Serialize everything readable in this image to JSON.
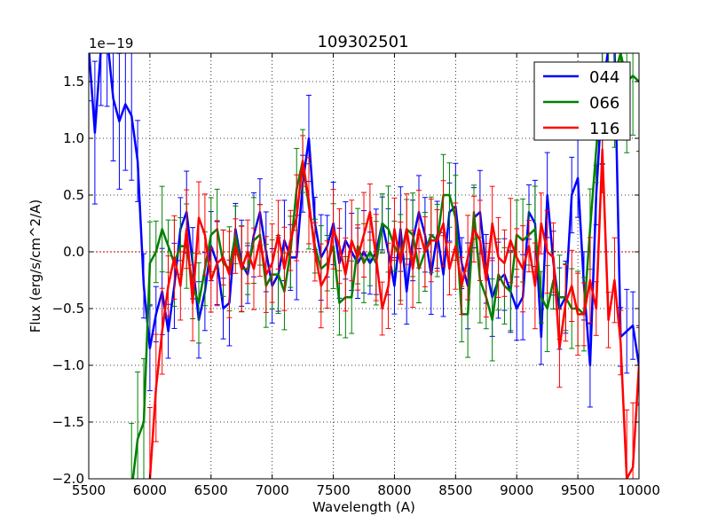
{
  "chart_data": {
    "type": "line",
    "title": "109302501",
    "xlabel": "Wavelength (A)",
    "ylabel": "Flux (erg/s/cm^2/A)",
    "offset_label": "1e−19",
    "xlim": [
      5500,
      10000
    ],
    "ylim": [
      -2.0,
      1.75
    ],
    "x_ticks": [
      5500,
      6000,
      6500,
      7000,
      7500,
      8000,
      8500,
      9000,
      9500,
      10000
    ],
    "x_tick_labels": [
      "5500",
      "6000",
      "6500",
      "7000",
      "7500",
      "8000",
      "8500",
      "9000",
      "9500",
      "10000"
    ],
    "y_ticks": [
      -2.0,
      -1.5,
      -1.0,
      -0.5,
      0.0,
      0.5,
      1.0,
      1.5
    ],
    "y_tick_labels": [
      "−2.0",
      "−1.5",
      "−1.0",
      "−0.5",
      "0.0",
      "0.5",
      "1.0",
      "1.5"
    ],
    "grid": true,
    "zero_line": true,
    "legend_position": "top-right",
    "series": [
      {
        "name": "044",
        "color": "#0000ff",
        "x": [
          5500,
          5550,
          5600,
          5650,
          5700,
          5750,
          5800,
          5850,
          5900,
          5950,
          6000,
          6050,
          6100,
          6150,
          6200,
          6250,
          6300,
          6350,
          6400,
          6450,
          6500,
          6550,
          6600,
          6650,
          6700,
          6750,
          6800,
          6850,
          6900,
          6950,
          7000,
          7050,
          7100,
          7150,
          7200,
          7250,
          7300,
          7350,
          7400,
          7450,
          7500,
          7550,
          7600,
          7650,
          7700,
          7750,
          7800,
          7850,
          7900,
          7950,
          8000,
          8050,
          8100,
          8150,
          8200,
          8250,
          8300,
          8350,
          8400,
          8450,
          8500,
          8550,
          8600,
          8650,
          8700,
          8750,
          8800,
          8850,
          8900,
          8950,
          9000,
          9050,
          9100,
          9150,
          9200,
          9250,
          9300,
          9350,
          9400,
          9450,
          9500,
          9550,
          9600,
          9650,
          9700,
          9750,
          9800,
          9850,
          9900,
          9950,
          10000
        ],
        "y": [
          1.8,
          1.05,
          1.8,
          1.9,
          1.35,
          1.15,
          1.3,
          1.2,
          0.8,
          -0.3,
          -0.85,
          -0.55,
          -0.35,
          -0.7,
          -0.3,
          0.2,
          0.35,
          -0.1,
          -0.6,
          -0.35,
          0.05,
          -0.1,
          -0.5,
          -0.45,
          0.2,
          -0.1,
          -0.2,
          0.15,
          0.35,
          0.0,
          -0.3,
          -0.2,
          0.1,
          -0.05,
          -0.05,
          0.6,
          1.0,
          0.25,
          -0.05,
          0.05,
          0.25,
          -0.1,
          0.1,
          0.0,
          -0.1,
          0.0,
          -0.1,
          0.0,
          0.25,
          0.0,
          -0.3,
          0.2,
          -0.35,
          0.1,
          0.35,
          0.15,
          -0.2,
          0.15,
          -0.2,
          0.35,
          0.4,
          -0.1,
          -0.3,
          0.3,
          0.35,
          -0.15,
          -0.4,
          -0.25,
          -0.2,
          -0.35,
          -0.5,
          -0.4,
          0.35,
          0.25,
          -0.75,
          0.5,
          -0.1,
          -0.5,
          -0.4,
          0.5,
          0.65,
          -0.3,
          -1.0,
          0.5,
          1.4,
          1.8,
          1.8,
          -0.75,
          -0.7,
          -0.65,
          -1.0
        ]
      },
      {
        "name": "066",
        "color": "#008000",
        "x": [
          5850,
          5900,
          5950,
          6000,
          6050,
          6100,
          6150,
          6200,
          6250,
          6300,
          6350,
          6400,
          6450,
          6500,
          6550,
          6600,
          6650,
          6700,
          6750,
          6800,
          6850,
          6900,
          6950,
          7000,
          7050,
          7100,
          7150,
          7200,
          7250,
          7300,
          7350,
          7400,
          7450,
          7500,
          7550,
          7600,
          7650,
          7700,
          7750,
          7800,
          7850,
          7900,
          7950,
          8000,
          8050,
          8100,
          8150,
          8200,
          8250,
          8300,
          8350,
          8400,
          8450,
          8500,
          8550,
          8600,
          8650,
          8700,
          8750,
          8800,
          8850,
          8900,
          8950,
          9000,
          9050,
          9100,
          9150,
          9200,
          9250,
          9300,
          9350,
          9400,
          9450,
          9500,
          9550,
          9600,
          9650,
          9700,
          9750,
          9800,
          9850,
          9900,
          9950,
          10000
        ],
        "y": [
          -2.1,
          -1.65,
          -1.5,
          -0.1,
          0.0,
          0.2,
          0.05,
          -0.1,
          0.05,
          0.05,
          -0.3,
          -0.45,
          -0.15,
          0.15,
          0.2,
          -0.1,
          -0.15,
          0.15,
          -0.15,
          -0.15,
          0.1,
          0.15,
          -0.3,
          -0.2,
          -0.2,
          -0.35,
          0.0,
          0.55,
          0.8,
          0.4,
          0.05,
          -0.15,
          -0.1,
          0.05,
          -0.45,
          -0.4,
          -0.4,
          0.05,
          -0.1,
          0.0,
          -0.1,
          0.25,
          0.2,
          0.05,
          -0.05,
          0.2,
          0.15,
          -0.15,
          0.0,
          0.15,
          0.1,
          0.5,
          0.5,
          0.3,
          -0.55,
          -0.55,
          0.35,
          -0.25,
          -0.4,
          -0.6,
          -0.2,
          -0.3,
          -0.35,
          0.15,
          0.1,
          0.15,
          0.2,
          -0.4,
          -0.5,
          -0.25,
          -0.4,
          -0.4,
          -0.5,
          -0.5,
          -0.55,
          0.2,
          0.9,
          1.4,
          1.5,
          1.55,
          1.75,
          1.5,
          1.55,
          1.5
        ]
      },
      {
        "name": "116",
        "color": "#ff0000",
        "x": [
          6000,
          6050,
          6100,
          6150,
          6200,
          6250,
          6300,
          6350,
          6400,
          6450,
          6500,
          6550,
          6600,
          6650,
          6700,
          6750,
          6800,
          6850,
          6900,
          6950,
          7000,
          7050,
          7100,
          7150,
          7200,
          7250,
          7300,
          7350,
          7400,
          7450,
          7500,
          7550,
          7600,
          7650,
          7700,
          7750,
          7800,
          7850,
          7900,
          7950,
          8000,
          8050,
          8100,
          8150,
          8200,
          8250,
          8300,
          8350,
          8400,
          8450,
          8500,
          8550,
          8600,
          8650,
          8700,
          8750,
          8800,
          8850,
          8900,
          8950,
          9000,
          9050,
          9100,
          9150,
          9200,
          9250,
          9300,
          9350,
          9400,
          9450,
          9500,
          9550,
          9600,
          9650,
          9700,
          9750,
          9800,
          9850,
          9900,
          9950,
          10000
        ],
        "y": [
          -2.0,
          -1.2,
          -0.7,
          -0.3,
          -0.05,
          -0.3,
          0.2,
          -0.45,
          0.3,
          0.15,
          -0.25,
          -0.1,
          -0.05,
          -0.2,
          0.05,
          -0.15,
          0.0,
          -0.15,
          0.1,
          -0.2,
          -0.1,
          0.15,
          -0.15,
          0.1,
          0.3,
          0.8,
          0.45,
          0.0,
          -0.3,
          -0.2,
          0.2,
          0.05,
          -0.2,
          0.1,
          -0.05,
          0.15,
          0.35,
          -0.05,
          -0.5,
          -0.3,
          0.2,
          -0.1,
          0.2,
          -0.15,
          0.2,
          0.0,
          0.1,
          0.1,
          0.25,
          -0.15,
          0.05,
          -0.3,
          -0.05,
          0.2,
          0.1,
          -0.25,
          0.25,
          -0.05,
          -0.1,
          0.1,
          -0.05,
          -0.15,
          0.05,
          -0.3,
          0.25,
          0.0,
          -0.05,
          -0.85,
          -0.45,
          -0.3,
          -0.55,
          -0.55,
          -0.25,
          -0.5,
          0.9,
          -0.6,
          -0.25,
          -0.8,
          -2.0,
          -1.9,
          -1.0
        ]
      }
    ]
  }
}
